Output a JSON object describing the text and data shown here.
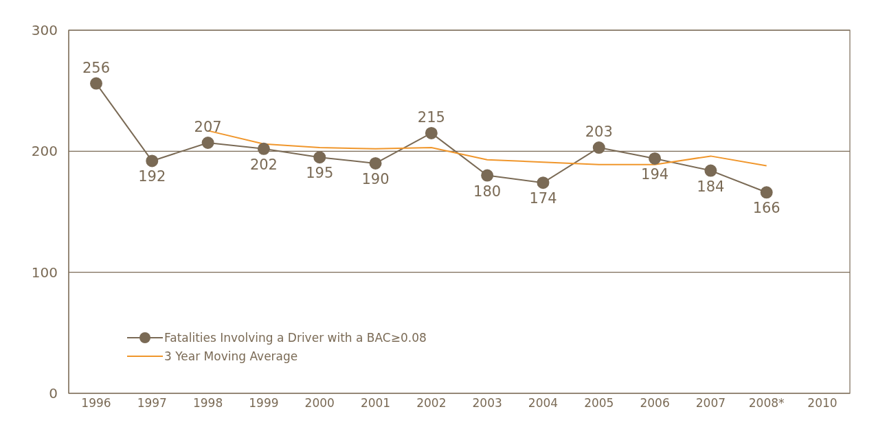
{
  "chart_data": {
    "type": "line",
    "categories": [
      "1996",
      "1997",
      "1998",
      "1999",
      "2000",
      "2001",
      "2002",
      "2003",
      "2004",
      "2005",
      "2006",
      "2007",
      "2008*",
      "2010"
    ],
    "series": [
      {
        "name": "Fatalities Involving a Driver with a BAC≥0.08",
        "color": "#7a6a55",
        "marker": "circle",
        "data_labels": true,
        "values": [
          256,
          192,
          207,
          202,
          195,
          190,
          215,
          180,
          174,
          203,
          194,
          184,
          166,
          null
        ]
      },
      {
        "name": "3 Year Moving Average",
        "color": "#f0962b",
        "marker": "none",
        "values": [
          null,
          null,
          217,
          206,
          203,
          202,
          203,
          193,
          191,
          189,
          189,
          196,
          188,
          null
        ]
      }
    ],
    "ylim": [
      0,
      300
    ],
    "yticks": [
      0,
      100,
      200,
      300
    ],
    "grid": "y",
    "legend": "bottom left",
    "line_style": "solid"
  }
}
